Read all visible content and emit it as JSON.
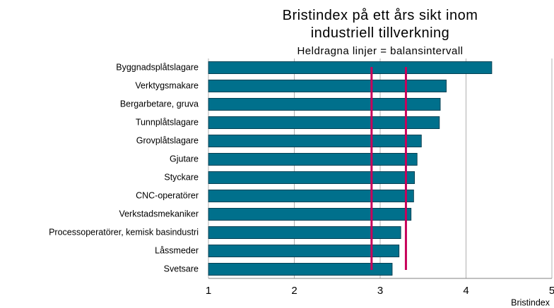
{
  "chart_data": {
    "type": "bar",
    "orientation": "horizontal",
    "title": "Bristindex på ett års sikt inom industriell tillverkning",
    "subtitle": "Heldragna linjer = balansintervall",
    "x_label": "Bristindex",
    "categories": [
      "Byggnadsplåtslagare",
      "Verktygsmakare",
      "Bergarbetare, gruva",
      "Tunnplåtslagare",
      "Grovplåtslagare",
      "Gjutare",
      "Styckare",
      "CNC-operatörer",
      "Verkstadsmekaniker",
      "Processoperatörer, kemisk basindustri",
      "Låssmeder",
      "Svetsare"
    ],
    "values": [
      4.3,
      3.77,
      3.7,
      3.69,
      3.48,
      3.43,
      3.4,
      3.39,
      3.36,
      3.24,
      3.22,
      3.14
    ],
    "color": "#00708c",
    "balance_lines": [
      2.9,
      3.3
    ],
    "balance_color": "#c8005a",
    "xlim": [
      1,
      5
    ],
    "xticks": [
      1,
      2,
      3,
      4,
      5
    ],
    "grid": true
  }
}
